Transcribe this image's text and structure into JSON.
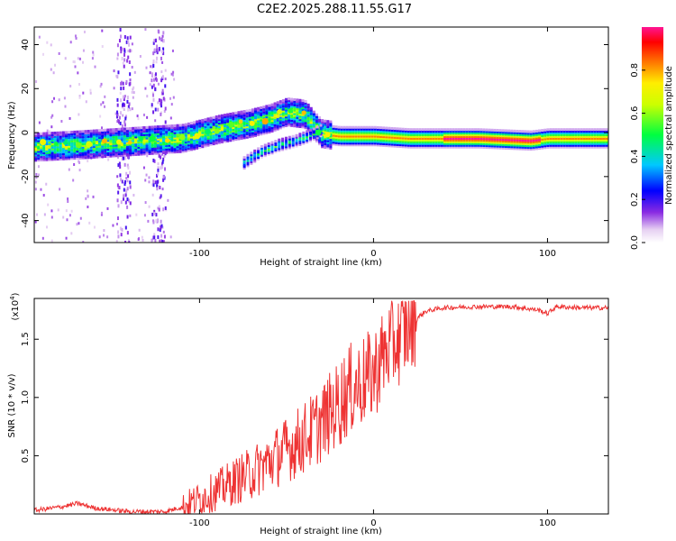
{
  "title": "C2E2.2025.288.11.55.G17",
  "chart_data": [
    {
      "type": "heatmap",
      "title": "C2E2.2025.288.11.55.G17",
      "xlabel": "Height of straight line (km)",
      "ylabel": "Frequency (Hz)",
      "xlim": [
        -195,
        135
      ],
      "ylim": [
        -50,
        48
      ],
      "xticks": [
        -100,
        0,
        100
      ],
      "xtick_labels": [
        "-100",
        "0",
        "100"
      ],
      "yticks": [
        -40,
        -20,
        0,
        20,
        40
      ],
      "ytick_labels": [
        "-40",
        "-20",
        "0",
        "20",
        "40"
      ],
      "ridge": {
        "description": "dominant spectral ridge (frequency vs height)",
        "x": [
          -195,
          -170,
          -150,
          -130,
          -110,
          -90,
          -70,
          -60,
          -50,
          -40,
          -35,
          -30,
          -20,
          -10,
          0,
          20,
          60,
          90,
          100,
          135
        ],
        "y": [
          -6,
          -5,
          -4,
          -3,
          -2,
          2,
          5,
          7,
          10,
          9,
          4,
          0,
          -1,
          -1,
          -1,
          -2,
          -2,
          -3,
          -2,
          -2
        ]
      },
      "secondary_branch": {
        "x": [
          -75,
          -65,
          -55,
          -45,
          -35,
          -30
        ],
        "y": [
          -13,
          -8,
          -5,
          -3,
          0,
          2
        ]
      },
      "colorbar": {
        "label": "Normalized spectral amplitude",
        "range": [
          0,
          1
        ],
        "ticks": [
          0.0,
          0.2,
          0.4,
          0.6,
          0.8
        ],
        "tick_labels": [
          "0.0",
          "0.2",
          "0.4",
          "0.6",
          "0.8"
        ]
      }
    },
    {
      "type": "line",
      "xlabel": "Height of straight line (km)",
      "ylabel": "SNR (10 * v/v)",
      "y_scale_label": "(x10",
      "y_scale_exp": "4",
      "xlim": [
        -195,
        135
      ],
      "ylim": [
        0,
        1.85
      ],
      "xticks": [
        -100,
        0,
        100
      ],
      "xtick_labels": [
        "-100",
        "0",
        "100"
      ],
      "yticks": [
        0.5,
        1.0,
        1.5
      ],
      "ytick_labels": [
        "0.5",
        "1.0",
        "1.5"
      ],
      "series": [
        {
          "name": "SNR",
          "color": "#ee3333",
          "x": [
            -195,
            -180,
            -170,
            -160,
            -140,
            -120,
            -110,
            -100,
            -90,
            -80,
            -70,
            -60,
            -50,
            -40,
            -30,
            -20,
            -15,
            -10,
            -5,
            0,
            5,
            10,
            15,
            20,
            25,
            30,
            40,
            60,
            80,
            95,
            100,
            105,
            120,
            135
          ],
          "y": [
            0.03,
            0.06,
            0.09,
            0.05,
            0.02,
            0.02,
            0.06,
            0.13,
            0.2,
            0.28,
            0.35,
            0.45,
            0.55,
            0.65,
            0.78,
            0.95,
            1.05,
            1.1,
            1.15,
            1.2,
            1.35,
            1.45,
            1.5,
            1.6,
            1.68,
            1.74,
            1.77,
            1.78,
            1.78,
            1.75,
            1.72,
            1.78,
            1.77,
            1.77
          ]
        }
      ]
    }
  ]
}
